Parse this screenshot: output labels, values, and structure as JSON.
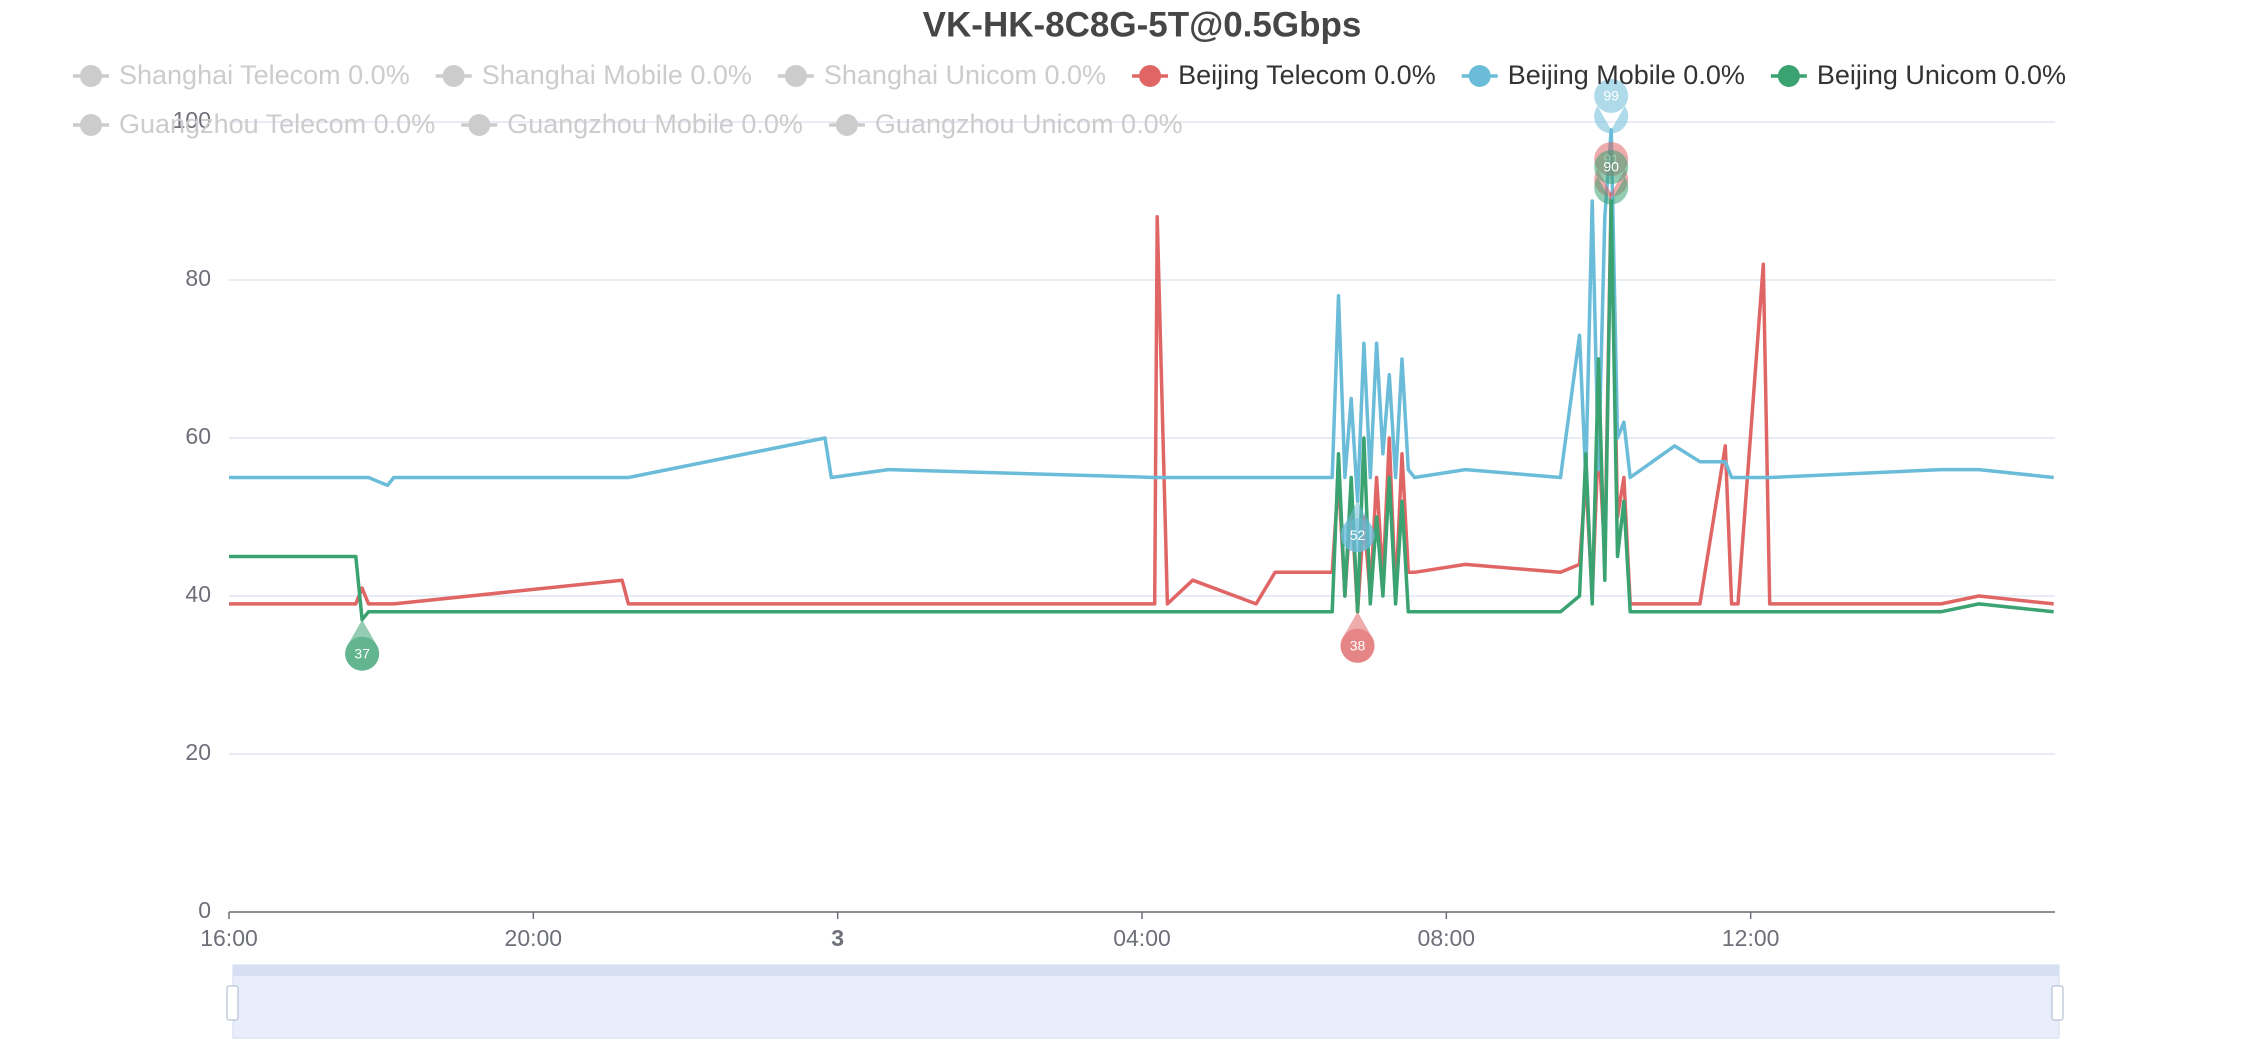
{
  "chart_data": {
    "type": "line",
    "title": "VK-HK-8C8G-5T@0.5Gbps",
    "x": [
      "16:00",
      "17:40",
      "17:45",
      "17:50",
      "18:05",
      "18:10",
      "21:10",
      "21:15",
      "23:50",
      "23:55",
      "00:40",
      "04:10",
      "04:12",
      "04:20",
      "04:40",
      "05:30",
      "05:45",
      "06:30",
      "06:35",
      "06:40",
      "06:45",
      "06:50",
      "06:55",
      "07:00",
      "07:05",
      "07:10",
      "07:15",
      "07:20",
      "07:25",
      "07:30",
      "07:35",
      "08:15",
      "09:30",
      "09:45",
      "09:50",
      "09:55",
      "10:00",
      "10:05",
      "10:10",
      "10:15",
      "10:20",
      "10:25",
      "11:00",
      "11:20",
      "11:40",
      "11:45",
      "11:50",
      "12:10",
      "12:15",
      "14:30",
      "15:00",
      "15:59"
    ],
    "xlim": [
      "16:00",
      "16:00"
    ],
    "xticks": [
      "16:00",
      "20:00",
      {
        "value": "00:00",
        "label": "3"
      },
      "04:00",
      "08:00",
      "12:00"
    ],
    "ylim": [
      0,
      100
    ],
    "yticks": [
      0,
      20,
      40,
      60,
      80,
      100
    ],
    "grid": true,
    "series": [
      {
        "name": "Shanghai Telecom 0.0%",
        "color": "#cccccc",
        "hidden": true
      },
      {
        "name": "Shanghai Mobile 0.0%",
        "color": "#cccccc",
        "hidden": true
      },
      {
        "name": "Shanghai Unicom 0.0%",
        "color": "#cccccc",
        "hidden": true
      },
      {
        "name": "Beijing Telecom 0.0%",
        "color": "#e06666",
        "values": [
          39,
          39,
          41,
          39,
          39,
          39,
          42,
          39,
          39,
          39,
          39,
          39,
          88,
          39,
          42,
          39,
          43,
          43,
          55,
          40,
          52,
          38,
          50,
          40,
          55,
          42,
          60,
          40,
          58,
          43,
          43,
          44,
          43,
          44,
          55,
          40,
          60,
          45,
          91,
          50,
          55,
          39,
          39,
          39,
          59,
          39,
          39,
          82,
          39,
          39,
          40,
          39
        ]
      },
      {
        "name": "Beijing Mobile 0.0%",
        "color": "#6bbcd9",
        "values": [
          55,
          55,
          55,
          55,
          54,
          55,
          55,
          55,
          60,
          55,
          56,
          55,
          55,
          55,
          55,
          55,
          55,
          55,
          78,
          55,
          65,
          52,
          72,
          55,
          72,
          58,
          68,
          55,
          70,
          56,
          55,
          56,
          55,
          73,
          55,
          90,
          56,
          88,
          99,
          60,
          62,
          55,
          59,
          57,
          57,
          55,
          55,
          55,
          55,
          56,
          56,
          55
        ]
      },
      {
        "name": "Beijing Unicom 0.0%",
        "color": "#3ba272",
        "values": [
          45,
          45,
          37,
          38,
          38,
          38,
          38,
          38,
          38,
          38,
          38,
          38,
          38,
          38,
          38,
          38,
          38,
          38,
          58,
          40,
          55,
          38,
          60,
          39,
          50,
          40,
          55,
          39,
          52,
          38,
          38,
          38,
          38,
          40,
          58,
          39,
          70,
          42,
          90,
          45,
          52,
          38,
          38,
          38,
          38,
          38,
          38,
          38,
          38,
          38,
          39,
          38
        ]
      },
      {
        "name": "Guangzhou Telecom 0.0%",
        "color": "#cccccc",
        "hidden": true
      },
      {
        "name": "Guangzhou Mobile 0.0%",
        "color": "#cccccc",
        "hidden": true
      },
      {
        "name": "Guangzhou Unicom 0.0%",
        "color": "#cccccc",
        "hidden": true
      }
    ]
  }
}
